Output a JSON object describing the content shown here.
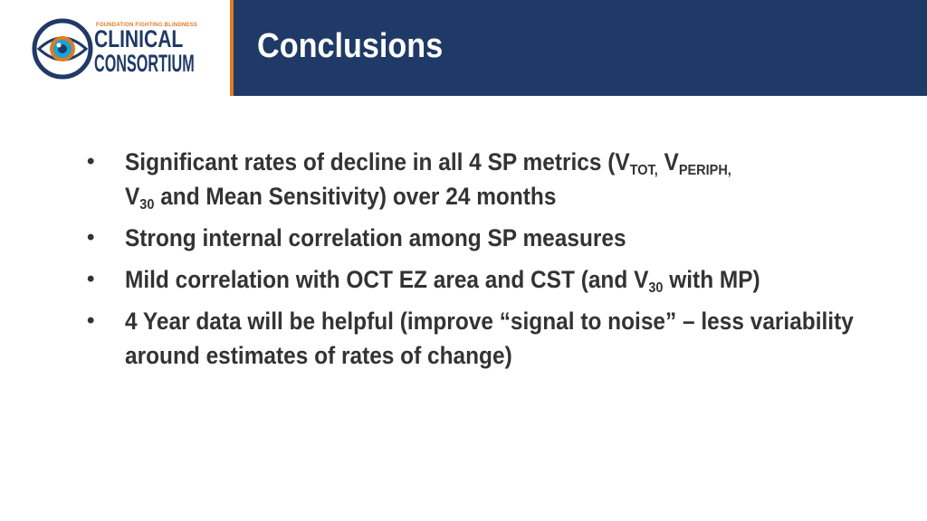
{
  "logo": {
    "org_line": "FOUNDATION FIGHTING BLINDNESS",
    "line1": "CLINICAL",
    "line2": "CONSORTIUM"
  },
  "header": {
    "title": "Conclusions"
  },
  "bullets": [
    {
      "t1": "Significant rates of decline in all 4 SP metrics (V",
      "s1": "TOT,",
      "t2": " V",
      "s2": "PERIPH,",
      "t3": " V",
      "s3": "30",
      "t4": " and Mean Sensitivity) over 24 months"
    },
    {
      "t1": "Strong internal correlation among SP measures"
    },
    {
      "t1": "Mild correlation with OCT EZ area and CST (and V",
      "s1": "30",
      "t2": " with MP)"
    },
    {
      "t1": "4 Year data will be helpful (improve “signal to noise” – less variability around estimates of rates of change)"
    }
  ],
  "colors": {
    "header_bg": "#1f3a66",
    "accent": "#e07a1f",
    "text": "#333333",
    "logo_eye_inner": "#1aa3d6"
  }
}
